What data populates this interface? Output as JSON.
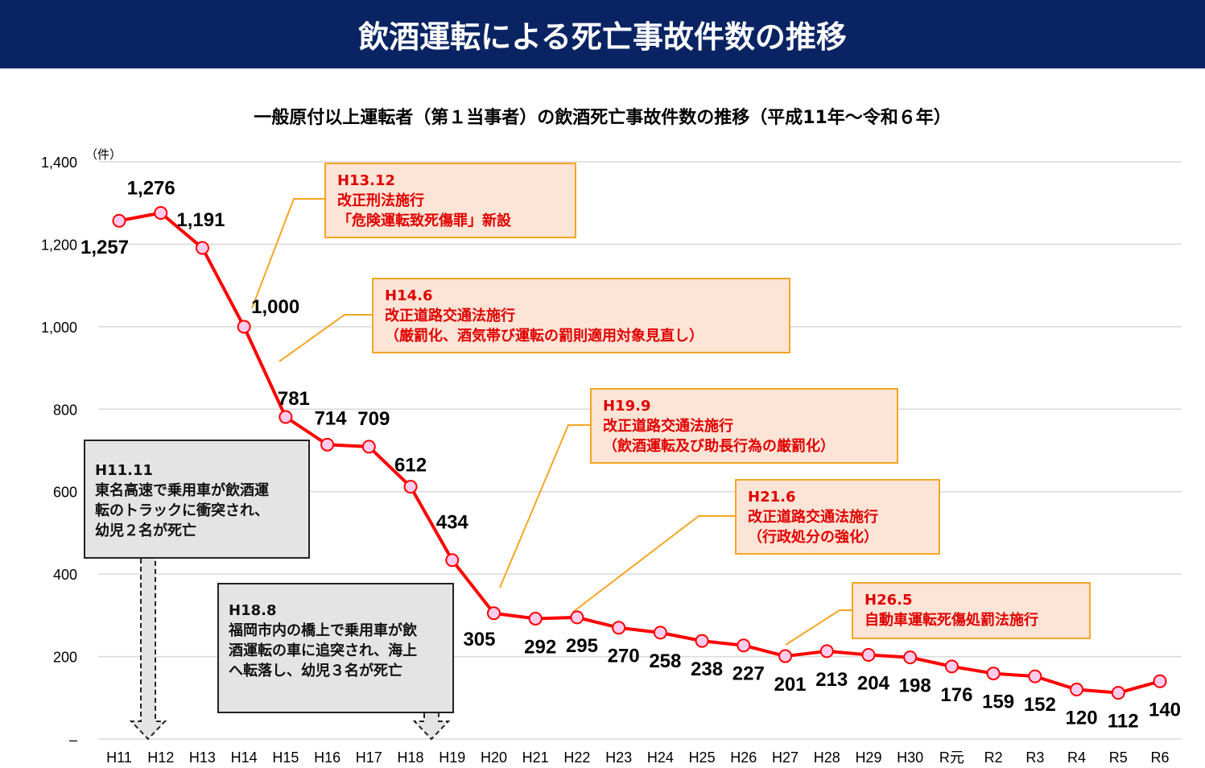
{
  "header": {
    "title": "飲酒運転による死亡事故件数の推移"
  },
  "chart_data": {
    "type": "line",
    "title": "一般原付以上運転者（第１当事者）の飲酒死亡事故件数の推移（平成11年～令和６年）",
    "ylabel": "（件）",
    "xlabel": "",
    "ylim": [
      0,
      1400
    ],
    "yticks": [
      0,
      200,
      400,
      600,
      800,
      1000,
      1200,
      1400
    ],
    "ytick_labels": [
      "–",
      "200",
      "400",
      "600",
      "800",
      "1,000",
      "1,200",
      "1,400"
    ],
    "grid": true,
    "categories": [
      "H11",
      "H12",
      "H13",
      "H14",
      "H15",
      "H16",
      "H17",
      "H18",
      "H19",
      "H20",
      "H21",
      "H22",
      "H23",
      "H24",
      "H25",
      "H26",
      "H27",
      "H28",
      "H29",
      "H30",
      "R元",
      "R2",
      "R3",
      "R4",
      "R5",
      "R6"
    ],
    "values": [
      1257,
      1276,
      1191,
      1000,
      781,
      714,
      709,
      612,
      434,
      305,
      292,
      295,
      270,
      258,
      238,
      227,
      201,
      213,
      204,
      198,
      176,
      159,
      152,
      120,
      112,
      140
    ],
    "value_labels": [
      "1,257",
      "1,276",
      "1,191",
      "1,000",
      "781",
      "714",
      "709",
      "612",
      "434",
      "305",
      "292",
      "295",
      "270",
      "258",
      "238",
      "227",
      "201",
      "213",
      "204",
      "198",
      "176",
      "159",
      "152",
      "120",
      "112",
      "140"
    ],
    "line_color": "#ff0000",
    "marker_color": "#ffccee"
  },
  "annotations": [
    {
      "date": "H13.12",
      "lines": [
        "改正刑法施行",
        "「危険運転致死傷罪」新設"
      ]
    },
    {
      "date": "H14.6",
      "lines": [
        "改正道路交通法施行",
        "（厳罰化、酒気帯び運転の罰則適用対象見直し）"
      ]
    },
    {
      "date": "H19.9",
      "lines": [
        "改正道路交通法施行",
        "（飲酒運転及び助長行為の厳罰化）"
      ]
    },
    {
      "date": "H21.6",
      "lines": [
        "改正道路交通法施行",
        "（行政処分の強化）"
      ]
    },
    {
      "date": "H26.5",
      "lines": [
        "自動車運転死傷処罰法施行"
      ]
    }
  ],
  "events": [
    {
      "date": "H11.11",
      "lines": [
        "東名高速で乗用車が飲酒運",
        "転のトラックに衝突され、",
        "幼児２名が死亡"
      ]
    },
    {
      "date": "H18.8",
      "lines": [
        "福岡市内の橋上で乗用車が飲",
        "酒運転の車に追突され、海上",
        "へ転落し、幼児３名が死亡"
      ]
    }
  ]
}
